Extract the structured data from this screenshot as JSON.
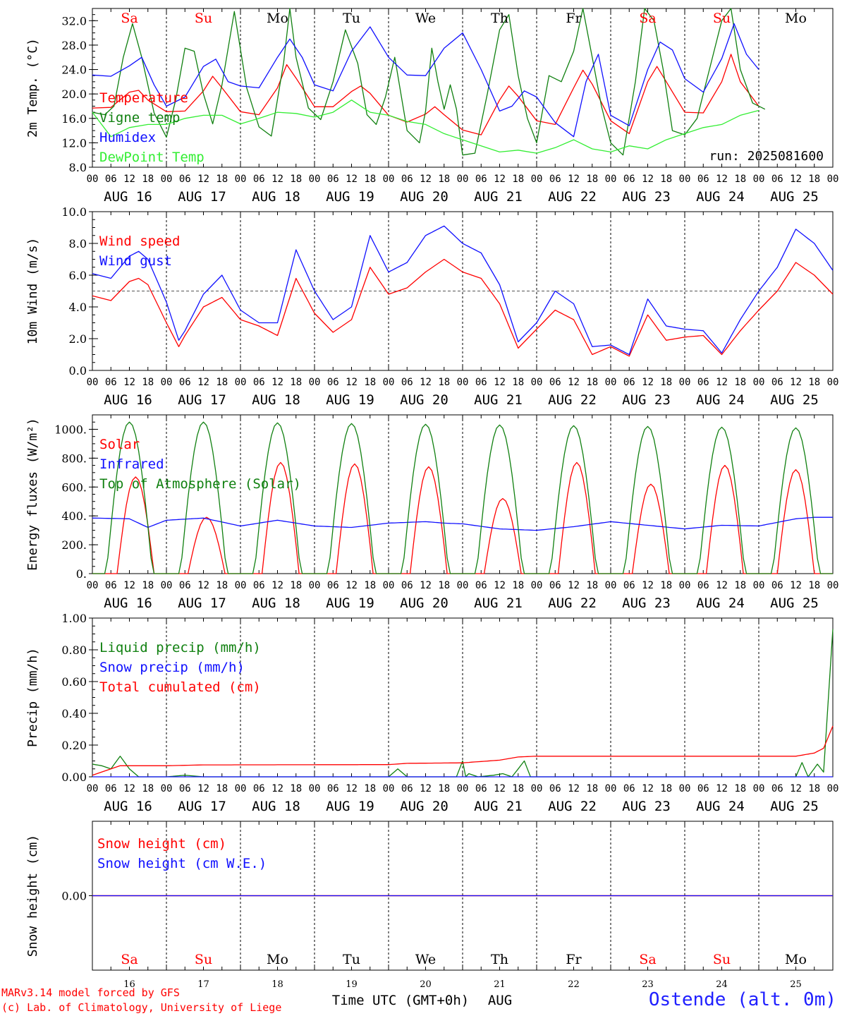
{
  "meteogram": {
    "run_label": "run: 2025081600",
    "days_count": 10,
    "day_names": [
      "Sa",
      "Su",
      "Mo",
      "Tu",
      "We",
      "Th",
      "Fr",
      "Sa",
      "Su",
      "Mo"
    ],
    "day_name_colors": [
      "#ff0000",
      "#ff0000",
      "#000000",
      "#000000",
      "#000000",
      "#000000",
      "#000000",
      "#ff0000",
      "#ff0000",
      "#000000"
    ],
    "date_labels": [
      "AUG 16",
      "AUG 17",
      "AUG 18",
      "AUG 19",
      "AUG 20",
      "AUG 21",
      "AUG 22",
      "AUG 23",
      "AUG 24",
      "AUG 25"
    ],
    "hour_ticks": [
      "00",
      "06",
      "12",
      "18"
    ],
    "bottom_day_numbers": [
      "16",
      "17",
      "18",
      "19",
      "20",
      "21",
      "22",
      "23",
      "24",
      "25"
    ],
    "x_axis_title": "Time UTC (GMT+0h)",
    "x_axis_month": "AUG",
    "credit_line_1": "MARv3.14 model forced by GFS",
    "credit_line_2": "(c) Lab. of Climatology, University of Liege",
    "station": "Ostende (alt. 0m)"
  },
  "colors": {
    "red": "#ff0000",
    "green": "#108010",
    "blue": "#1010ff",
    "light_green": "#33ee33",
    "axis": "#000000"
  },
  "chart_data": [
    {
      "type": "line",
      "ylabel": "2m Temp. (°C)",
      "ylim": [
        8,
        34
      ],
      "yticks": [
        8,
        12,
        16,
        20,
        24,
        28,
        32
      ],
      "ytick_labels": [
        "8.0",
        "12.0",
        "16.0",
        "20.0",
        "24.0",
        "28.0",
        "32.0"
      ],
      "x_unit": "hours since AUG 16 00 UTC",
      "series": [
        {
          "name": "Temperature",
          "color": "#ff0000",
          "x": [
            0,
            6,
            12,
            15,
            18,
            24,
            30,
            36,
            39,
            42,
            48,
            54,
            60,
            63,
            66,
            72,
            78,
            84,
            87,
            90,
            96,
            102,
            108,
            111,
            114,
            120,
            126,
            132,
            135,
            138,
            144,
            150,
            156,
            159,
            162,
            168,
            174,
            180,
            183,
            186,
            192,
            198,
            204,
            207,
            210,
            216,
            222,
            228,
            231,
            234,
            240
          ],
          "y": [
            17.7,
            17.8,
            20.3,
            20.6,
            19.0,
            17.1,
            17.2,
            20.5,
            22.9,
            21.0,
            17.1,
            16.6,
            21.0,
            24.8,
            22.6,
            17.9,
            17.9,
            20.4,
            21.3,
            20.1,
            16.5,
            15.4,
            16.7,
            17.9,
            16.6,
            14.1,
            13.3,
            19.0,
            21.3,
            19.6,
            15.6,
            15.0,
            21.0,
            23.9,
            21.6,
            15.6,
            13.5,
            22.0,
            24.5,
            22.0,
            17.0,
            16.9,
            22.0,
            26.5,
            22.0,
            18.0,
            null,
            null,
            null,
            null,
            null
          ]
        },
        {
          "name": "Vigne temp",
          "color": "#108010",
          "x": [
            0,
            4,
            7,
            10,
            13,
            16,
            20,
            24,
            27,
            30,
            33,
            36,
            39,
            42,
            46,
            50,
            54,
            58,
            62,
            64,
            66,
            70,
            74,
            78,
            82,
            86,
            89,
            92,
            95,
            98,
            102,
            106,
            108,
            110,
            112,
            114,
            116,
            118,
            120,
            124,
            128,
            132,
            135,
            138,
            141,
            144,
            148,
            152,
            156,
            159,
            162,
            165,
            168,
            172,
            176,
            179,
            182,
            185,
            188,
            192,
            196,
            200,
            204,
            207,
            210,
            214,
            218,
            222,
            226,
            230
          ],
          "y": [
            17,
            16.6,
            18,
            26,
            31.5,
            26,
            16.9,
            12.9,
            19.0,
            27.5,
            27.0,
            20.0,
            15.1,
            21.5,
            33.5,
            21.0,
            14.6,
            13.1,
            25.2,
            34.5,
            26.0,
            17.7,
            15.8,
            22.0,
            30.5,
            25.0,
            16.6,
            15.0,
            19.5,
            26.0,
            14.0,
            12.0,
            17.2,
            27.5,
            22.0,
            17.5,
            21.5,
            17.5,
            10.0,
            10.3,
            20.0,
            30.5,
            33.0,
            23.0,
            16.0,
            12.0,
            23.0,
            22.0,
            27.0,
            34.0,
            26.0,
            18.0,
            12.0,
            10.0,
            22.0,
            34.0,
            32.0,
            24.0,
            14.0,
            13.3,
            16.0,
            24.0,
            32.0,
            35.0,
            24.0,
            18.5,
            17.5,
            null,
            null,
            null
          ]
        },
        {
          "name": "Humidex",
          "color": "#1010ff",
          "x": [
            0,
            6,
            12,
            16,
            20,
            24,
            30,
            36,
            40,
            44,
            48,
            54,
            60,
            64,
            68,
            72,
            78,
            84,
            90,
            96,
            102,
            108,
            114,
            120,
            126,
            132,
            136,
            140,
            144,
            150,
            156,
            160,
            164,
            168,
            174,
            180,
            184,
            188,
            192,
            198,
            204,
            208,
            212,
            216,
            222,
            228,
            232,
            236,
            240
          ],
          "y": [
            23.1,
            22.9,
            24.6,
            26.0,
            21.5,
            18.0,
            19.5,
            24.5,
            25.7,
            22.0,
            21.3,
            21.0,
            26.0,
            29.0,
            26.0,
            21.5,
            20.5,
            27.0,
            31.0,
            26.0,
            23.1,
            23.0,
            27.5,
            30.0,
            24.0,
            17.2,
            18.0,
            20.5,
            19.5,
            15.3,
            13.0,
            22.0,
            26.5,
            16.5,
            14.8,
            24.0,
            28.5,
            27.2,
            22.5,
            20.3,
            25.8,
            31.5,
            26.5,
            24.0,
            null,
            null,
            null,
            null,
            null
          ]
        },
        {
          "name": "DewPoint Temp",
          "color": "#33ee33",
          "x": [
            0,
            6,
            12,
            18,
            24,
            30,
            36,
            42,
            48,
            54,
            60,
            66,
            72,
            78,
            84,
            90,
            96,
            102,
            108,
            114,
            120,
            126,
            132,
            138,
            144,
            150,
            156,
            162,
            168,
            174,
            180,
            186,
            192,
            198,
            204,
            210,
            216,
            222,
            228,
            234,
            240
          ],
          "y": [
            17.0,
            13.0,
            14.5,
            15.0,
            15.0,
            16.0,
            16.5,
            16.5,
            15.1,
            16.0,
            17.0,
            16.8,
            16.2,
            17.0,
            19.0,
            17.0,
            16.5,
            15.5,
            15.0,
            13.5,
            12.5,
            11.5,
            10.5,
            10.8,
            10.3,
            11.2,
            12.5,
            11.0,
            10.5,
            11.5,
            11.0,
            12.5,
            13.5,
            14.5,
            15.0,
            16.5,
            17.3,
            null,
            null,
            null,
            null
          ]
        }
      ]
    },
    {
      "type": "line",
      "ylabel": "10m Wind (m/s)",
      "ylim": [
        0,
        10
      ],
      "yticks": [
        0,
        2,
        4,
        6,
        8,
        10
      ],
      "ytick_labels": [
        "0.0",
        "2.0",
        "4.0",
        "6.0",
        "8.0",
        "10.0"
      ],
      "reference_line": 5,
      "series": [
        {
          "name": "Wind speed",
          "color": "#ff0000",
          "x": [
            0,
            6,
            12,
            15,
            18,
            24,
            28,
            30,
            36,
            42,
            48,
            54,
            60,
            66,
            72,
            78,
            84,
            90,
            96,
            102,
            108,
            114,
            120,
            126,
            132,
            138,
            144,
            150,
            156,
            162,
            168,
            174,
            180,
            186,
            192,
            198,
            204,
            210,
            216,
            222,
            228,
            234,
            240
          ],
          "y": [
            4.7,
            4.4,
            5.6,
            5.8,
            5.4,
            3.0,
            1.5,
            2.2,
            4.0,
            4.6,
            3.2,
            2.8,
            2.2,
            5.8,
            3.6,
            2.4,
            3.2,
            6.5,
            4.8,
            5.2,
            6.2,
            7.0,
            6.2,
            5.8,
            4.2,
            1.4,
            2.6,
            3.8,
            3.2,
            1.0,
            1.5,
            0.9,
            3.5,
            1.9,
            2.1,
            2.2,
            1.0,
            2.5,
            3.8,
            5.0,
            6.8,
            6.0,
            4.8
          ]
        },
        {
          "name": "Wind gust",
          "color": "#1010ff",
          "x": [
            0,
            6,
            12,
            15,
            18,
            24,
            28,
            30,
            36,
            42,
            48,
            54,
            60,
            66,
            72,
            78,
            84,
            90,
            96,
            102,
            108,
            114,
            120,
            126,
            132,
            138,
            144,
            150,
            156,
            162,
            168,
            174,
            180,
            186,
            192,
            198,
            204,
            210,
            216,
            222,
            228,
            234,
            240
          ],
          "y": [
            6.1,
            5.8,
            7.2,
            7.5,
            7.0,
            4.3,
            1.9,
            2.5,
            4.8,
            6.0,
            3.8,
            3.0,
            3.0,
            7.6,
            5.0,
            3.2,
            4.0,
            8.5,
            6.2,
            6.8,
            8.5,
            9.1,
            8.0,
            7.4,
            5.4,
            1.8,
            3.0,
            5.0,
            4.2,
            1.5,
            1.6,
            1.0,
            4.5,
            2.8,
            2.6,
            2.5,
            1.1,
            3.2,
            5.0,
            6.5,
            8.9,
            8.0,
            6.3
          ]
        }
      ]
    },
    {
      "type": "line",
      "ylabel": "Energy fluxes (W/m²)",
      "ylim": [
        0,
        1100
      ],
      "yticks": [
        0,
        200,
        400,
        600,
        800,
        1000
      ],
      "ytick_labels": [
        "0.",
        "200.",
        "400.",
        "600.",
        "800.",
        "1000."
      ],
      "series": [
        {
          "name": "Solar",
          "color": "#ff0000",
          "peak_hours": [
            14,
            37,
            61,
            85,
            109,
            133,
            157,
            181,
            205,
            228
          ],
          "daily_peak_W_m2": [
            670,
            390,
            770,
            760,
            740,
            520,
            770,
            620,
            750,
            720
          ]
        },
        {
          "name": "Infrared",
          "color": "#1010ff",
          "x": [
            0,
            12,
            18,
            24,
            36,
            48,
            60,
            72,
            84,
            96,
            108,
            114,
            120,
            132,
            144,
            156,
            168,
            180,
            192,
            204,
            216,
            228,
            234,
            240
          ],
          "y": [
            385,
            380,
            320,
            370,
            385,
            330,
            370,
            330,
            320,
            350,
            360,
            350,
            345,
            310,
            300,
            325,
            360,
            335,
            310,
            335,
            330,
            380,
            390,
            390
          ]
        },
        {
          "name": "Top of Atmosphere (Solar)",
          "color": "#108010",
          "peak_hours": [
            12,
            36,
            60,
            84,
            108,
            132,
            156,
            180,
            204,
            228
          ],
          "daily_peak_W_m2": [
            1050,
            1050,
            1045,
            1040,
            1035,
            1030,
            1025,
            1020,
            1015,
            1010
          ],
          "day_length_hours": 15
        }
      ]
    },
    {
      "type": "line",
      "ylabel": "Precip (mm/h)",
      "ylim": [
        0,
        1.0
      ],
      "yticks": [
        0,
        0.2,
        0.4,
        0.6,
        0.8,
        1.0
      ],
      "ytick_labels": [
        "0.00",
        "0.20",
        "0.40",
        "0.60",
        "0.80",
        "1.00"
      ],
      "series": [
        {
          "name": "Liquid precip (mm/h)",
          "color": "#108010",
          "x": [
            0,
            3,
            6,
            9,
            12,
            15,
            18,
            24,
            30,
            36,
            42,
            48,
            96,
            99,
            102,
            105,
            118,
            120,
            121,
            122,
            125,
            130,
            133,
            136,
            140,
            142,
            144,
            160,
            200,
            228,
            230,
            232,
            235,
            237,
            240
          ],
          "y": [
            0.08,
            0.07,
            0.05,
            0.13,
            0.05,
            0,
            0,
            0,
            0.01,
            0,
            0,
            0,
            0,
            0.05,
            0,
            0,
            0,
            0.1,
            0,
            0.02,
            0,
            0.01,
            0.02,
            0,
            0.1,
            0,
            0,
            0,
            0,
            0,
            0.09,
            0,
            0.08,
            0.03,
            0.93
          ]
        },
        {
          "name": "Snow precip (mm/h)",
          "color": "#1010ff",
          "x": [
            0,
            240
          ],
          "y": [
            0,
            0
          ]
        },
        {
          "name": "Total cumulated (cm)",
          "color": "#ff0000",
          "x": [
            0,
            6,
            9,
            24,
            36,
            96,
            102,
            120,
            132,
            138,
            144,
            180,
            210,
            228,
            234,
            237,
            240
          ],
          "y": [
            0.01,
            0.05,
            0.07,
            0.07,
            0.075,
            0.077,
            0.085,
            0.088,
            0.105,
            0.125,
            0.13,
            0.13,
            0.13,
            0.13,
            0.15,
            0.18,
            0.32
          ]
        }
      ]
    },
    {
      "type": "line",
      "ylabel": "Snow height (cm)",
      "ylim": [
        -1,
        1
      ],
      "yticks": [
        0
      ],
      "ytick_labels": [
        "0.00"
      ],
      "series": [
        {
          "name": "Snow height (cm)",
          "color": "#ff0000",
          "x": [
            0,
            240
          ],
          "y": [
            0,
            0
          ]
        },
        {
          "name": "Snow height (cm W.E.)",
          "color": "#1010ff",
          "x": [
            0,
            240
          ],
          "y": [
            0,
            0
          ]
        }
      ]
    }
  ]
}
